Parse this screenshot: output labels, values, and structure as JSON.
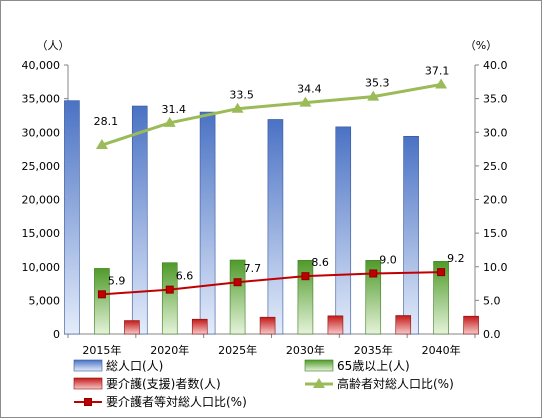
{
  "chart_data": {
    "type": "bar",
    "categories": [
      "2015年",
      "2020年",
      "2025年",
      "2030年",
      "2035年",
      "2040年"
    ],
    "y_left": {
      "unit_label": "（人）",
      "ylim": [
        0,
        40000
      ],
      "ticks": [
        "0",
        "5,000",
        "10,000",
        "15,000",
        "20,000",
        "25,000",
        "30,000",
        "35,000",
        "40,000"
      ]
    },
    "y_right": {
      "unit_label": "（%）",
      "ylim": [
        0,
        40
      ],
      "ticks": [
        "0.0",
        "5.0",
        "10.0",
        "15.0",
        "20.0",
        "25.0",
        "30.0",
        "35.0",
        "40.0"
      ]
    },
    "series": [
      {
        "name": "総人口(人)",
        "kind": "bar",
        "axis": "left",
        "color": "#6f8fd6",
        "values": [
          34700,
          33900,
          33000,
          31900,
          30800,
          29400
        ]
      },
      {
        "name": "65歳以上(人)",
        "kind": "bar",
        "axis": "left",
        "color": "#7cc04a",
        "values": [
          9750,
          10600,
          11000,
          10950,
          10950,
          10800
        ]
      },
      {
        "name": "要介護(支援)者数(人)",
        "kind": "bar",
        "axis": "left",
        "color": "#d42020",
        "values": [
          2000,
          2200,
          2500,
          2700,
          2750,
          2650
        ]
      },
      {
        "name": "高齢者対総人口比(%)",
        "kind": "line",
        "axis": "right",
        "color": "#9bbb59",
        "values": [
          28.1,
          31.4,
          33.5,
          34.4,
          35.3,
          37.1
        ],
        "labels": [
          "28.1",
          "31.4",
          "33.5",
          "34.4",
          "35.3",
          "37.1"
        ]
      },
      {
        "name": "要介護者等対総人口比(%)",
        "kind": "line",
        "axis": "right",
        "color": "#c00000",
        "values": [
          5.9,
          6.6,
          7.7,
          8.6,
          9.0,
          9.2
        ],
        "labels": [
          "5.9",
          "6.6",
          "7.7",
          "8.6",
          "9.0",
          "9.2"
        ]
      }
    ],
    "grid": false,
    "legend_placement": "bottom"
  }
}
